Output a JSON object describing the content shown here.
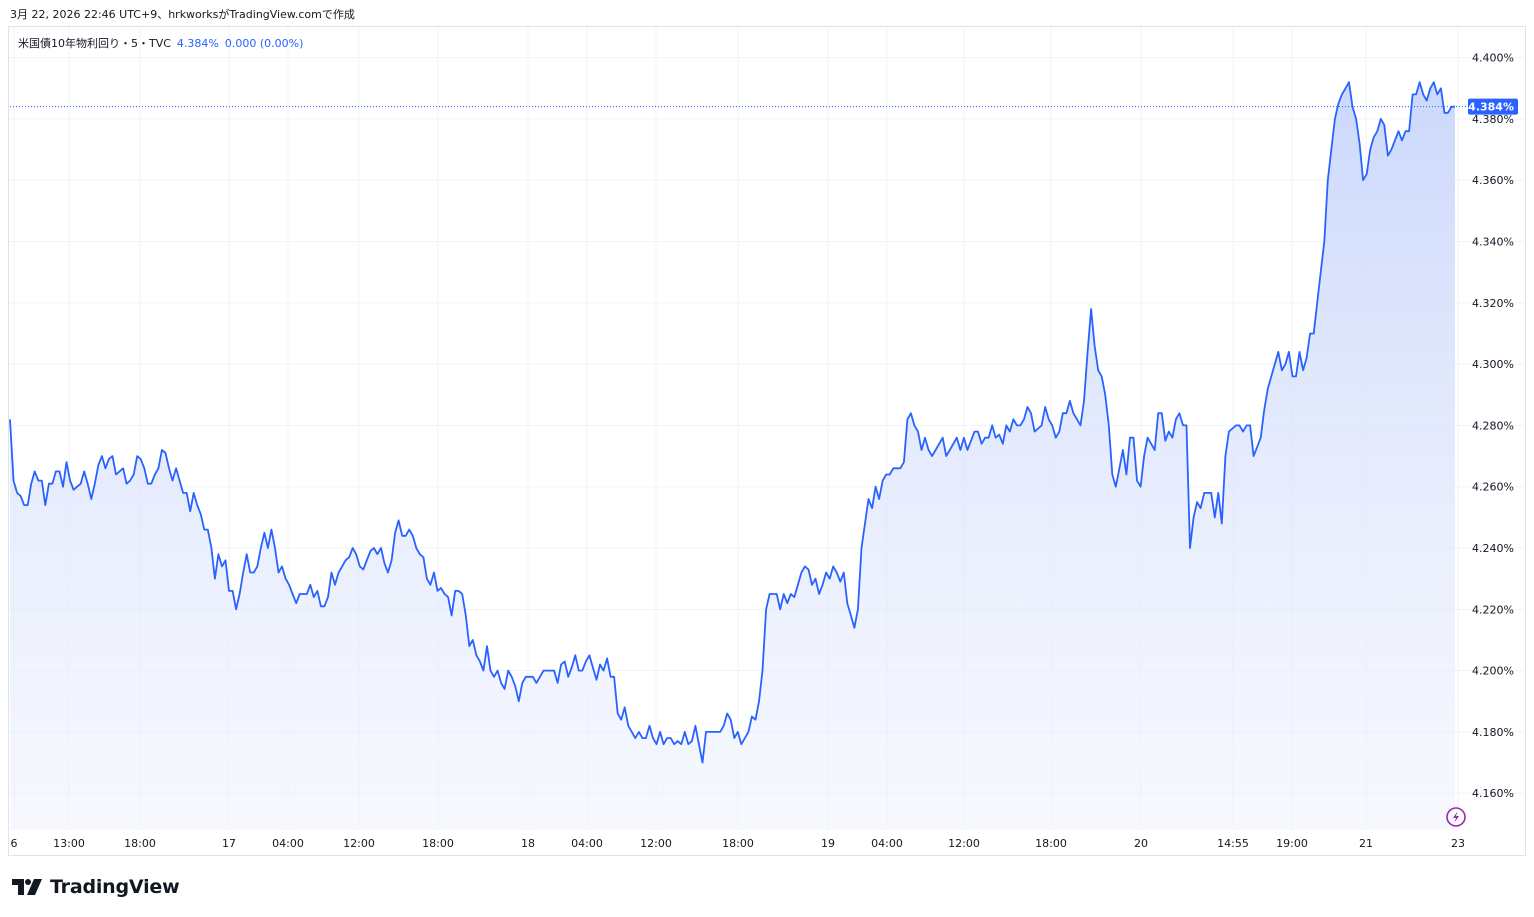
{
  "header": {
    "caption": "3月 22, 2026 22:46 UTC+9、hrkworksがTradingView.comで作成"
  },
  "legend": {
    "symbol": "米国債10年物利回り・5・TVC",
    "value": "4.384%",
    "change": "0.000 (0.00%)"
  },
  "logo": {
    "text": "TradingView"
  },
  "colors": {
    "line": "#2962ff",
    "fill_top": "#c9d6fb",
    "grid": "#f0f3fa",
    "text": "#131722",
    "price_tag": "#2962ff",
    "bolt": "#9c27b0"
  },
  "icons": {
    "bolt": "lightning-icon",
    "logo": "tradingview-logo-icon"
  },
  "chart_data": {
    "type": "area",
    "title": "米国債10年物利回り・5・TVC",
    "ylim": [
      4.148,
      4.41
    ],
    "y_ticks": [
      "4.400%",
      "4.380%",
      "4.360%",
      "4.340%",
      "4.320%",
      "4.300%",
      "4.280%",
      "4.260%",
      "4.240%",
      "4.220%",
      "4.200%",
      "4.180%",
      "4.160%"
    ],
    "x_ticks": [
      "6",
      "13:00",
      "18:00",
      "17",
      "04:00",
      "12:00",
      "18:00",
      "18",
      "04:00",
      "12:00",
      "18:00",
      "19",
      "04:00",
      "12:00",
      "18:00",
      "20",
      "14:55",
      "19:00",
      "21",
      "23"
    ],
    "last_price_label": "4.384%",
    "last_value": 4.384,
    "grid": true,
    "series": [
      {
        "values": [
          4.282,
          4.262,
          4.258,
          4.257,
          4.254,
          4.254,
          4.261,
          4.265,
          4.262,
          4.262,
          4.254,
          4.261,
          4.261,
          4.265,
          4.265,
          4.26,
          4.268,
          4.262,
          4.259,
          4.26,
          4.261,
          4.265,
          4.261,
          4.256,
          4.261,
          4.267,
          4.27,
          4.266,
          4.269,
          4.27,
          4.264,
          4.265,
          4.266,
          4.261,
          4.262,
          4.264,
          4.27,
          4.269,
          4.266,
          4.261,
          4.261,
          4.264,
          4.266,
          4.272,
          4.271,
          4.266,
          4.262,
          4.266,
          4.262,
          4.258,
          4.258,
          4.252,
          4.258,
          4.254,
          4.251,
          4.246,
          4.246,
          4.24,
          4.23,
          4.238,
          4.234,
          4.236,
          4.226,
          4.226,
          4.22,
          4.225,
          4.232,
          4.238,
          4.232,
          4.232,
          4.234,
          4.24,
          4.245,
          4.24,
          4.246,
          4.24,
          4.232,
          4.234,
          4.23,
          4.228,
          4.225,
          4.222,
          4.225,
          4.225,
          4.225,
          4.228,
          4.224,
          4.226,
          4.221,
          4.221,
          4.224,
          4.232,
          4.228,
          4.232,
          4.234,
          4.236,
          4.237,
          4.24,
          4.238,
          4.234,
          4.233,
          4.236,
          4.239,
          4.24,
          4.238,
          4.24,
          4.235,
          4.232,
          4.236,
          4.245,
          4.249,
          4.244,
          4.244,
          4.246,
          4.244,
          4.24,
          4.238,
          4.237,
          4.23,
          4.228,
          4.232,
          4.226,
          4.227,
          4.225,
          4.224,
          4.218,
          4.226,
          4.226,
          4.225,
          4.218,
          4.208,
          4.21,
          4.205,
          4.203,
          4.2,
          4.208,
          4.2,
          4.198,
          4.2,
          4.196,
          4.194,
          4.2,
          4.198,
          4.195,
          4.19,
          4.196,
          4.198,
          4.198,
          4.198,
          4.196,
          4.198,
          4.2,
          4.2,
          4.2,
          4.2,
          4.196,
          4.202,
          4.203,
          4.198,
          4.201,
          4.205,
          4.2,
          4.2,
          4.203,
          4.205,
          4.201,
          4.197,
          4.202,
          4.2,
          4.204,
          4.198,
          4.198,
          4.186,
          4.184,
          4.188,
          4.182,
          4.18,
          4.178,
          4.18,
          4.178,
          4.178,
          4.182,
          4.178,
          4.176,
          4.18,
          4.176,
          4.178,
          4.178,
          4.176,
          4.177,
          4.176,
          4.18,
          4.176,
          4.177,
          4.182,
          4.176,
          4.17,
          4.18,
          4.18,
          4.18,
          4.18,
          4.18,
          4.182,
          4.186,
          4.184,
          4.178,
          4.18,
          4.176,
          4.178,
          4.18,
          4.185,
          4.184,
          4.19,
          4.2,
          4.22,
          4.225,
          4.225,
          4.225,
          4.22,
          4.225,
          4.222,
          4.225,
          4.224,
          4.228,
          4.232,
          4.234,
          4.233,
          4.228,
          4.23,
          4.225,
          4.228,
          4.232,
          4.23,
          4.234,
          4.232,
          4.229,
          4.232,
          4.222,
          4.218,
          4.214,
          4.22,
          4.24,
          4.248,
          4.256,
          4.253,
          4.26,
          4.256,
          4.262,
          4.264,
          4.264,
          4.266,
          4.266,
          4.266,
          4.268,
          4.282,
          4.284,
          4.28,
          4.278,
          4.272,
          4.276,
          4.272,
          4.27,
          4.272,
          4.274,
          4.276,
          4.27,
          4.272,
          4.274,
          4.276,
          4.272,
          4.276,
          4.272,
          4.275,
          4.278,
          4.278,
          4.274,
          4.276,
          4.276,
          4.28,
          4.276,
          4.277,
          4.274,
          4.28,
          4.278,
          4.282,
          4.28,
          4.28,
          4.282,
          4.286,
          4.284,
          4.278,
          4.279,
          4.28,
          4.286,
          4.282,
          4.28,
          4.276,
          4.278,
          4.284,
          4.284,
          4.288,
          4.284,
          4.282,
          4.28,
          4.288,
          4.304,
          4.318,
          4.306,
          4.298,
          4.296,
          4.29,
          4.28,
          4.264,
          4.26,
          4.266,
          4.272,
          4.264,
          4.276,
          4.276,
          4.262,
          4.26,
          4.27,
          4.276,
          4.274,
          4.272,
          4.284,
          4.284,
          4.275,
          4.278,
          4.276,
          4.282,
          4.284,
          4.28,
          4.28,
          4.24,
          4.25,
          4.255,
          4.253,
          4.258,
          4.258,
          4.258,
          4.25,
          4.258,
          4.248,
          4.27,
          4.278,
          4.279,
          4.28,
          4.28,
          4.278,
          4.28,
          4.28,
          4.27,
          4.273,
          4.276,
          4.285,
          4.292,
          4.296,
          4.3,
          4.304,
          4.298,
          4.3,
          4.304,
          4.296,
          4.296,
          4.304,
          4.298,
          4.302,
          4.31,
          4.31,
          4.32,
          4.33,
          4.34,
          4.36,
          4.37,
          4.38,
          4.385,
          4.388,
          4.39,
          4.392,
          4.384,
          4.38,
          4.372,
          4.36,
          4.362,
          4.37,
          4.374,
          4.376,
          4.38,
          4.378,
          4.368,
          4.37,
          4.373,
          4.376,
          4.373,
          4.376,
          4.376,
          4.388,
          4.388,
          4.392,
          4.388,
          4.386,
          4.39,
          4.392,
          4.388,
          4.39,
          4.382,
          4.382,
          4.384,
          4.384
        ]
      }
    ]
  }
}
